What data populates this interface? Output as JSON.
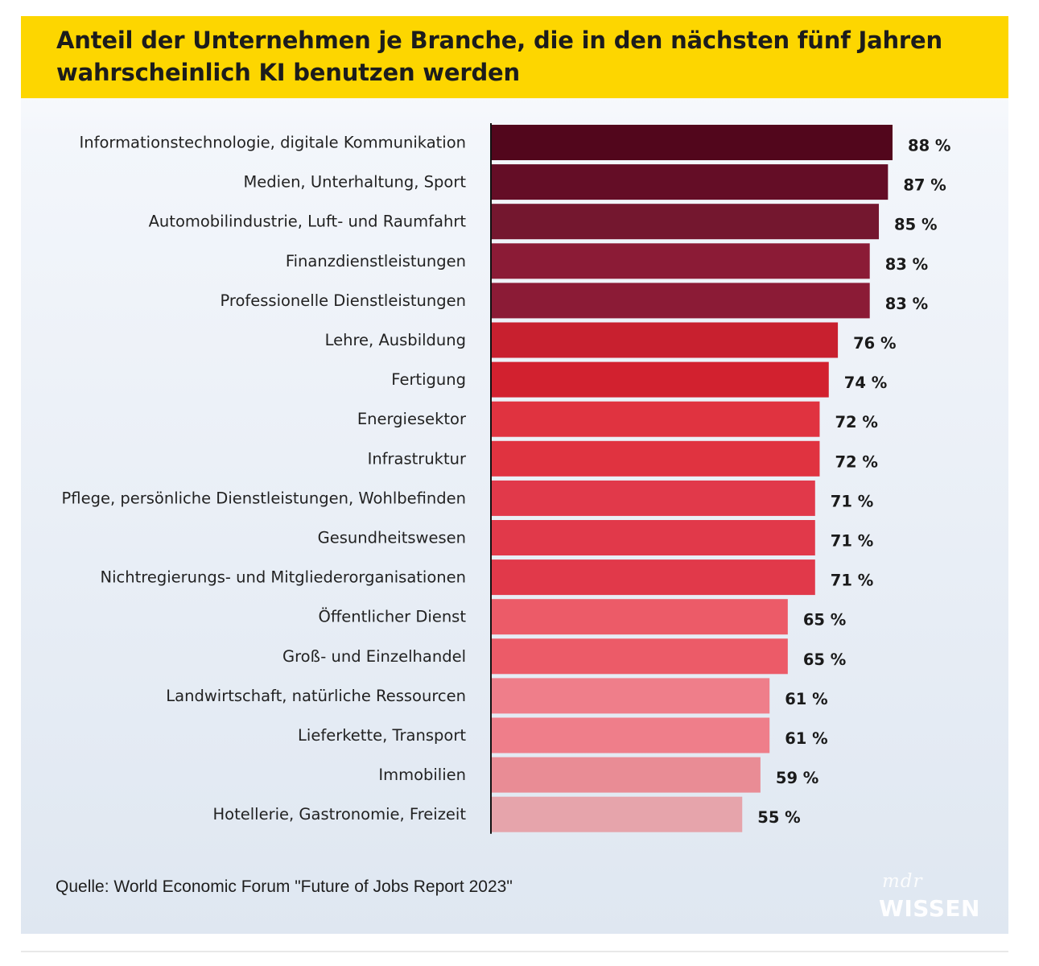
{
  "chart_data": {
    "type": "bar",
    "orientation": "horizontal",
    "title": "Anteil der Unternehmen je Branche, die in den nächsten fünf Jahren wahrscheinlich KI benutzen werden",
    "categories": [
      "Informationstechnologie, digitale Kommunikation",
      "Medien, Unterhaltung, Sport",
      "Automobilindustrie, Luft- und Raumfahrt",
      "Finanzdienstleistungen",
      "Professionelle Dienstleistungen",
      "Lehre, Ausbildung",
      "Fertigung",
      "Energiesektor",
      "Infrastruktur",
      "Pflege, persönliche Dienstleistungen, Wohlbefinden",
      "Gesundheitswesen",
      "Nichtregierungs- und Mitgliederorganisationen",
      "Öffentlicher Dienst",
      "Groß- und Einzelhandel",
      "Landwirtschaft, natürliche Ressourcen",
      "Lieferkette, Transport",
      "Immobilien",
      "Hotellerie, Gastronomie, Freizeit"
    ],
    "values": [
      88,
      87,
      85,
      83,
      83,
      76,
      74,
      72,
      72,
      71,
      71,
      71,
      65,
      65,
      61,
      61,
      59,
      55
    ],
    "value_labels": [
      "88 %",
      "87 %",
      "85 %",
      "83 %",
      "83 %",
      "76 %",
      "74 %",
      "72 %",
      "72 %",
      "71 %",
      "71 %",
      "71 %",
      "65 %",
      "65 %",
      "61 %",
      "61 %",
      "59 %",
      "55 %"
    ],
    "bar_colors": [
      "#52061c",
      "#640d26",
      "#74172f",
      "#8b1b36",
      "#8b1b36",
      "#c8202f",
      "#d2212f",
      "#e03340",
      "#e03340",
      "#e1394a",
      "#e1394a",
      "#e1394a",
      "#ec5b68",
      "#ec5b68",
      "#ef7e8a",
      "#ef7e8a",
      "#e98c95",
      "#e6a4ab"
    ],
    "xlim": [
      0,
      88
    ],
    "grid": false,
    "legend": "none"
  },
  "source": "Quelle: World Economic Forum \"Future of Jobs Report 2023\"",
  "logo": {
    "line1": "mdr",
    "line2": "WISSEN"
  },
  "colors": {
    "title_band": "#fdd600",
    "axis": "#111111"
  }
}
